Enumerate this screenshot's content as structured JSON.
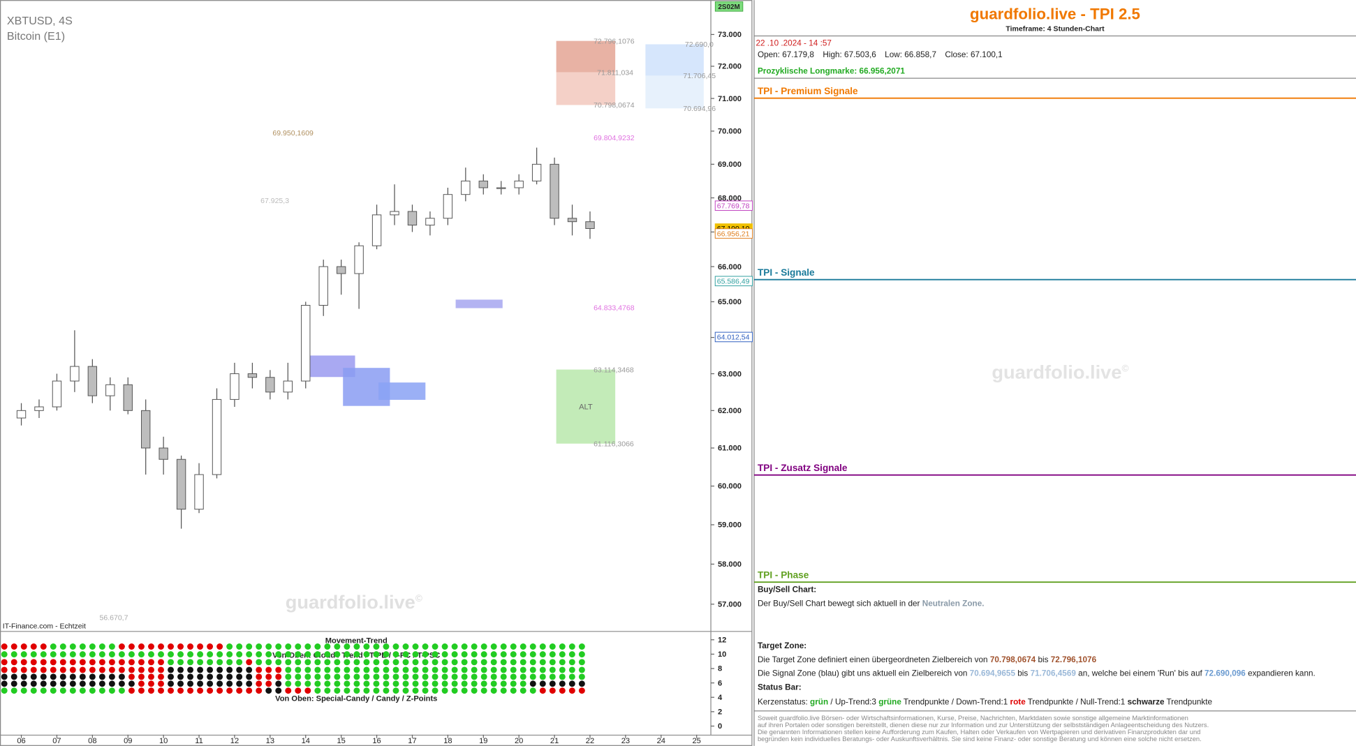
{
  "chart_data": {
    "type": "candlestick",
    "title": "XBTUSD, 4S",
    "subtitle": "Bitcoin (E1)",
    "source": "IT-Finance.com - Echtzeit",
    "watermark": "guardfolio.live",
    "watermark_mark": "©",
    "time_label": "2S02M",
    "log_scale": true,
    "candle_up_color": "#ffffff",
    "candle_down_color": "#bdbdbd",
    "x": [
      6,
      6.5,
      7,
      7.5,
      8,
      8.5,
      9,
      9.5,
      10,
      10.5,
      11,
      11.5,
      12,
      12.5,
      13,
      13.5,
      14,
      14.5,
      15,
      15.5,
      16,
      16.5,
      17,
      17.5,
      18,
      18.5,
      19,
      19.5,
      20,
      20.5,
      21,
      21.5,
      22
    ],
    "open": [
      61800,
      62000,
      62100,
      62800,
      63200,
      62400,
      62700,
      62000,
      61000,
      60700,
      59400,
      60300,
      62300,
      63000,
      62900,
      62500,
      62800,
      64900,
      66000,
      65800,
      66600,
      67500,
      67600,
      67200,
      67400,
      68100,
      68500,
      68300,
      68300,
      68500,
      69000,
      67400,
      67300
    ],
    "high": [
      62200,
      62300,
      63000,
      64200,
      63400,
      62900,
      62900,
      62300,
      61300,
      60800,
      60600,
      62600,
      63300,
      63300,
      63100,
      63300,
      65000,
      66200,
      66200,
      66700,
      67800,
      68400,
      67800,
      67600,
      68300,
      68900,
      68700,
      68500,
      68700,
      69500,
      69200,
      67800,
      67600
    ],
    "low": [
      61600,
      61800,
      62000,
      62500,
      62200,
      62000,
      61900,
      60300,
      60300,
      58900,
      59300,
      60200,
      62100,
      62600,
      62300,
      62300,
      62600,
      64600,
      65200,
      64800,
      66500,
      67200,
      67000,
      66900,
      67200,
      67900,
      68100,
      68100,
      68100,
      68400,
      67200,
      66900,
      66800
    ],
    "close": [
      62000,
      62100,
      62800,
      63200,
      62400,
      62700,
      62000,
      61000,
      60700,
      59400,
      60300,
      62300,
      63000,
      62900,
      62500,
      62800,
      64900,
      66000,
      65800,
      66600,
      67500,
      67600,
      67200,
      67400,
      68100,
      68500,
      68300,
      68300,
      68500,
      69000,
      67400,
      67300,
      67100
    ],
    "xlim": [
      5.4,
      25.4
    ],
    "xticks": [
      {
        "value": 6,
        "label": "06"
      },
      {
        "value": 7,
        "label": "07"
      },
      {
        "value": 8,
        "label": "08"
      },
      {
        "value": 9,
        "label": "09"
      },
      10,
      11,
      12,
      13,
      14,
      15,
      16,
      17,
      18,
      19,
      20,
      21,
      22,
      23,
      24,
      25
    ],
    "ylim": [
      56340,
      74100
    ],
    "yticks": [
      {
        "value": 57000,
        "label": "57.000"
      },
      {
        "value": 58000,
        "label": "58.000"
      },
      {
        "value": 59000,
        "label": "59.000"
      },
      {
        "value": 60000,
        "label": "60.000"
      },
      {
        "value": 61000,
        "label": "61.000"
      },
      {
        "value": 62000,
        "label": "62.000"
      },
      {
        "value": 63000,
        "label": "63.000"
      },
      {
        "value": 64000,
        "label": "64.000"
      },
      {
        "value": 65000,
        "label": "65.000"
      },
      {
        "value": 66000,
        "label": "66.000"
      },
      {
        "value": 67000,
        "label": "67.000"
      },
      {
        "value": 68000,
        "label": "68.000"
      },
      {
        "value": 69000,
        "label": "69.000"
      },
      {
        "value": 70000,
        "label": "70.000"
      },
      {
        "value": 71000,
        "label": "71.000"
      },
      {
        "value": 72000,
        "label": "72.000"
      },
      {
        "value": 73000,
        "label": "73.000"
      }
    ],
    "zones": [
      {
        "from": 71811.034,
        "to": 72796.1076,
        "x_from": 21.05,
        "x_to": 22.71,
        "color": "#e4a594"
      },
      {
        "from": 70798.0674,
        "to": 71811.034,
        "x_from": 21.05,
        "x_to": 22.71,
        "color": "#f2c8bd"
      },
      {
        "from": 71706.4569,
        "to": 72690.096,
        "x_from": 23.56,
        "x_to": 25.2,
        "color": "#cfe2fb"
      },
      {
        "from": 70694.9655,
        "to": 71706.4569,
        "x_from": 23.56,
        "x_to": 25.2,
        "color": "#e3eefc"
      },
      {
        "from": 61116.3066,
        "to": 63114.3468,
        "x_from": 21.05,
        "x_to": 22.71,
        "color": "#b8e8ac",
        "label": "ALT"
      },
      {
        "from": 62910,
        "to": 63500,
        "x_from": 14.05,
        "x_to": 15.39,
        "color": "#9a9af0"
      },
      {
        "from": 62125,
        "to": 63160,
        "x_from": 15.05,
        "x_to": 16.37,
        "color": "#8a9cf2"
      },
      {
        "from": 62290,
        "to": 62760,
        "x_from": 16.05,
        "x_to": 17.37,
        "color": "#8aa2f4"
      },
      {
        "from": 64820,
        "to": 65060,
        "x_from": 18.22,
        "x_to": 19.54,
        "color": "#a6a6f0"
      }
    ],
    "annotations": [
      {
        "text": "72.796,1076",
        "value": 72796.1076,
        "x": 22.1,
        "color": "#999999"
      },
      {
        "text": "71.811,034",
        "value": 71811.034,
        "x": 22.2,
        "color": "#999999"
      },
      {
        "text": "70.798,0674",
        "value": 70798.0674,
        "x": 22.1,
        "color": "#999999"
      },
      {
        "text": "72.690,0",
        "value": 72690.0,
        "x": 24.67,
        "color": "#999999"
      },
      {
        "text": "71.706,45",
        "value": 71706.45,
        "x": 24.62,
        "color": "#999999"
      },
      {
        "text": "70.694,96",
        "value": 70694.96,
        "x": 24.62,
        "color": "#999999"
      },
      {
        "text": "69.950,1609",
        "value": 69950.1609,
        "x": 13.07,
        "color": "#b09060"
      },
      {
        "text": "69.804,9232",
        "value": 69804.9232,
        "x": 22.1,
        "color": "#e070e0"
      },
      {
        "text": "67.925,3",
        "value": 67925.3,
        "x": 12.73,
        "color": "#bbbbbb"
      },
      {
        "text": "64.833,4768",
        "value": 64833.4768,
        "x": 22.1,
        "color": "#e070e0"
      },
      {
        "text": "63.114,3468",
        "value": 63114.3468,
        "x": 22.1,
        "color": "#999999"
      },
      {
        "text": "61.116,3066",
        "value": 61116.3066,
        "x": 22.1,
        "color": "#999999"
      },
      {
        "text": "56.670,7",
        "value": 56670.7,
        "x": 8.2,
        "color": "#aaaaaa"
      }
    ],
    "price_labels": [
      {
        "label": "67.769,78",
        "value": 67769.78,
        "color": "#c040c0"
      },
      {
        "label": "67.100,10",
        "value": 67100.1,
        "color": "#f0c000"
      },
      {
        "label": "66.956,21",
        "value": 66956.21,
        "color": "#e08020"
      },
      {
        "label": "65.586,49",
        "value": 65586.49,
        "color": "#30a0a0"
      },
      {
        "label": "64.012,54",
        "value": 64012.54,
        "color": "#3060c0"
      }
    ],
    "indicator": {
      "title": "Movement-Trend",
      "subtitle": "Von Oben: Cloud / Trend / T-PE / T-PC / T-PSC",
      "subtitle2": "Von Oben: Special-Candy / Candy / Z-Points",
      "ylim": [
        -1.2,
        13.1
      ],
      "yticks": [
        0,
        2,
        4,
        6,
        8,
        10,
        12
      ],
      "rows": [
        [
          [
            "#e00000",
            5
          ],
          [
            "#22cc22",
            7
          ],
          [
            "#e00000",
            11
          ],
          [
            "#22cc22",
            37
          ]
        ],
        [
          [
            "#22cc22",
            60
          ]
        ],
        [
          [
            "#e00000",
            17
          ],
          [
            "#22cc22",
            8
          ],
          [
            "#e00000",
            1
          ],
          [
            "#22cc22",
            34
          ]
        ],
        [
          [
            "#e00000",
            17
          ],
          [
            "#111111",
            9
          ],
          [
            "#e00000",
            3
          ],
          [
            "#22cc22",
            31
          ]
        ],
        [
          [
            "#111111",
            13
          ],
          [
            "#e00000",
            4
          ],
          [
            "#111111",
            9
          ],
          [
            "#e00000",
            3
          ],
          [
            "#22cc22",
            31
          ]
        ],
        [
          [
            "#111111",
            14
          ],
          [
            "#e00000",
            3
          ],
          [
            "#111111",
            9
          ],
          [
            "#e00000",
            2
          ],
          [
            "#111111",
            1
          ],
          [
            "#22cc22",
            25
          ],
          [
            "#111111",
            6
          ]
        ],
        [
          [
            "#22cc22",
            13
          ],
          [
            "#e00000",
            14
          ],
          [
            "#111111",
            2
          ],
          [
            "#e00000",
            3
          ],
          [
            "#22cc22",
            23
          ],
          [
            "#e00000",
            5
          ]
        ]
      ]
    }
  },
  "panel": {
    "title": "guardfolio.live - TPI 2.5",
    "timeframe": "Timeframe: 4 Stunden-Chart",
    "datetime": "22 .10 .2024 - 14 :57",
    "ohlc": [
      "Open: 67.179,8",
      "High: 67.503,6",
      "Low: 66.858,7",
      "Close: 67.100,1"
    ],
    "longmarke": "Prozyklische Longmarke: 66.956,2071",
    "sections": [
      {
        "title": "TPI - Premium Signale",
        "color": "#f07800"
      },
      {
        "title": "TPI - Signale",
        "color": "#1a7a9a"
      },
      {
        "title": "TPI - Zusatz Signale",
        "color": "#800080"
      },
      {
        "title": "TPI - Phase",
        "color": "#60a020"
      }
    ],
    "watermark": "guardfolio.live",
    "watermark_mark": "©",
    "buy_sell_heading": "Buy/Sell Chart:",
    "buy_sell": [
      {
        "text": "Der Buy/Sell Chart bewegt sich aktuell in der "
      },
      {
        "text": "Neutralen Zone.",
        "color": "#8a9aa8",
        "bold": true
      }
    ],
    "target_heading": "Target Zone:",
    "target_line1": [
      {
        "text": "Die Target Zone definiert einen übergeordneten Zielbereich von "
      },
      {
        "text": "70.798,0674",
        "color": "#a0522d",
        "bold": true
      },
      {
        "text": " bis "
      },
      {
        "text": "72.796,1076",
        "color": "#a0522d",
        "bold": true
      }
    ],
    "target_line2": [
      {
        "text": "Die Signal Zone (blau) gibt uns aktuell ein Zielbereich von "
      },
      {
        "text": "70.694,9655",
        "color": "#9ab8d8",
        "bold": true
      },
      {
        "text": " bis "
      },
      {
        "text": "71.706,4569",
        "color": "#9ab8d8",
        "bold": true
      },
      {
        "text": " an, welche bei einem 'Run' bis auf "
      },
      {
        "text": "72.690,096",
        "color": "#6a9ad0",
        "bold": true
      },
      {
        "text": " expandieren kann."
      }
    ],
    "status_heading": "Status Bar:",
    "status_line": [
      {
        "text": "Kerzenstatus:   "
      },
      {
        "text": "grün",
        "color": "#22aa22",
        "bold": true
      },
      {
        "text": "   / Up-Trend:3 "
      },
      {
        "text": "grüne",
        "color": "#22aa22",
        "bold": true
      },
      {
        "text": " Trendpunkte  / Down-Trend:1 "
      },
      {
        "text": "rote",
        "color": "#e00000",
        "bold": true
      },
      {
        "text": " Trendpunkte / Null-Trend:1 "
      },
      {
        "text": "schwarze",
        "bold": true
      },
      {
        "text": " Trendpunkte"
      }
    ],
    "disclaimer": [
      "Soweit guardfolio.live Börsen- oder Wirtschaftsinformationen, Kurse, Preise, Nachrichten, Marktdaten sowie sonstige allgemeine Marktinformationen",
      "auf ihren Portalen oder sonstigen bereitstellt, dienen diese nur zur Information und zur Unterstützung der selbstständigen Anlageentscheidung des Nutzers.",
      "Die genannten Informationen stellen keine Aufforderung zum Kaufen, Halten oder Verkaufen von Wertpapieren und derivativen Finanzprodukten dar und",
      "begründen kein individuelles Beratungs- oder Auskunftsverhältnis. Sie sind keine Finanz- oder sonstige Beratung und können eine solche nicht ersetzen."
    ]
  }
}
